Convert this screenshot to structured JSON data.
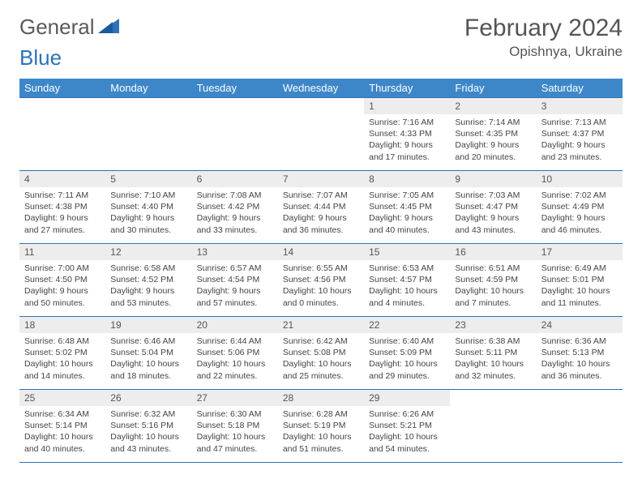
{
  "logo": {
    "general": "General",
    "blue": "Blue"
  },
  "title": {
    "month": "February 2024",
    "location": "Opishnya, Ukraine"
  },
  "colors": {
    "headerBg": "#3d87c9",
    "headerText": "#ffffff",
    "dayNumBg": "#ededed",
    "border": "#2d72b8",
    "bodyText": "#444444"
  },
  "dayHeaders": [
    "Sunday",
    "Monday",
    "Tuesday",
    "Wednesday",
    "Thursday",
    "Friday",
    "Saturday"
  ],
  "startOffset": 4,
  "days": [
    {
      "n": 1,
      "sunrise": "7:16 AM",
      "sunset": "4:33 PM",
      "daylight": "9 hours and 17 minutes."
    },
    {
      "n": 2,
      "sunrise": "7:14 AM",
      "sunset": "4:35 PM",
      "daylight": "9 hours and 20 minutes."
    },
    {
      "n": 3,
      "sunrise": "7:13 AM",
      "sunset": "4:37 PM",
      "daylight": "9 hours and 23 minutes."
    },
    {
      "n": 4,
      "sunrise": "7:11 AM",
      "sunset": "4:38 PM",
      "daylight": "9 hours and 27 minutes."
    },
    {
      "n": 5,
      "sunrise": "7:10 AM",
      "sunset": "4:40 PM",
      "daylight": "9 hours and 30 minutes."
    },
    {
      "n": 6,
      "sunrise": "7:08 AM",
      "sunset": "4:42 PM",
      "daylight": "9 hours and 33 minutes."
    },
    {
      "n": 7,
      "sunrise": "7:07 AM",
      "sunset": "4:44 PM",
      "daylight": "9 hours and 36 minutes."
    },
    {
      "n": 8,
      "sunrise": "7:05 AM",
      "sunset": "4:45 PM",
      "daylight": "9 hours and 40 minutes."
    },
    {
      "n": 9,
      "sunrise": "7:03 AM",
      "sunset": "4:47 PM",
      "daylight": "9 hours and 43 minutes."
    },
    {
      "n": 10,
      "sunrise": "7:02 AM",
      "sunset": "4:49 PM",
      "daylight": "9 hours and 46 minutes."
    },
    {
      "n": 11,
      "sunrise": "7:00 AM",
      "sunset": "4:50 PM",
      "daylight": "9 hours and 50 minutes."
    },
    {
      "n": 12,
      "sunrise": "6:58 AM",
      "sunset": "4:52 PM",
      "daylight": "9 hours and 53 minutes."
    },
    {
      "n": 13,
      "sunrise": "6:57 AM",
      "sunset": "4:54 PM",
      "daylight": "9 hours and 57 minutes."
    },
    {
      "n": 14,
      "sunrise": "6:55 AM",
      "sunset": "4:56 PM",
      "daylight": "10 hours and 0 minutes."
    },
    {
      "n": 15,
      "sunrise": "6:53 AM",
      "sunset": "4:57 PM",
      "daylight": "10 hours and 4 minutes."
    },
    {
      "n": 16,
      "sunrise": "6:51 AM",
      "sunset": "4:59 PM",
      "daylight": "10 hours and 7 minutes."
    },
    {
      "n": 17,
      "sunrise": "6:49 AM",
      "sunset": "5:01 PM",
      "daylight": "10 hours and 11 minutes."
    },
    {
      "n": 18,
      "sunrise": "6:48 AM",
      "sunset": "5:02 PM",
      "daylight": "10 hours and 14 minutes."
    },
    {
      "n": 19,
      "sunrise": "6:46 AM",
      "sunset": "5:04 PM",
      "daylight": "10 hours and 18 minutes."
    },
    {
      "n": 20,
      "sunrise": "6:44 AM",
      "sunset": "5:06 PM",
      "daylight": "10 hours and 22 minutes."
    },
    {
      "n": 21,
      "sunrise": "6:42 AM",
      "sunset": "5:08 PM",
      "daylight": "10 hours and 25 minutes."
    },
    {
      "n": 22,
      "sunrise": "6:40 AM",
      "sunset": "5:09 PM",
      "daylight": "10 hours and 29 minutes."
    },
    {
      "n": 23,
      "sunrise": "6:38 AM",
      "sunset": "5:11 PM",
      "daylight": "10 hours and 32 minutes."
    },
    {
      "n": 24,
      "sunrise": "6:36 AM",
      "sunset": "5:13 PM",
      "daylight": "10 hours and 36 minutes."
    },
    {
      "n": 25,
      "sunrise": "6:34 AM",
      "sunset": "5:14 PM",
      "daylight": "10 hours and 40 minutes."
    },
    {
      "n": 26,
      "sunrise": "6:32 AM",
      "sunset": "5:16 PM",
      "daylight": "10 hours and 43 minutes."
    },
    {
      "n": 27,
      "sunrise": "6:30 AM",
      "sunset": "5:18 PM",
      "daylight": "10 hours and 47 minutes."
    },
    {
      "n": 28,
      "sunrise": "6:28 AM",
      "sunset": "5:19 PM",
      "daylight": "10 hours and 51 minutes."
    },
    {
      "n": 29,
      "sunrise": "6:26 AM",
      "sunset": "5:21 PM",
      "daylight": "10 hours and 54 minutes."
    }
  ],
  "labels": {
    "sunrise": "Sunrise:",
    "sunset": "Sunset:",
    "daylight": "Daylight:"
  }
}
